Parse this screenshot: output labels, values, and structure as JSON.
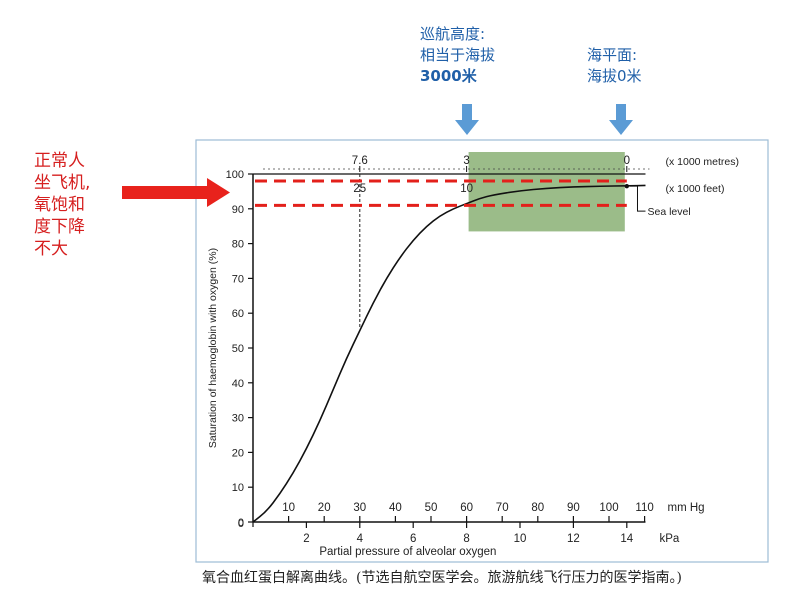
{
  "annotations": {
    "cruise_line1": "巡航高度:",
    "cruise_line2": "相当于海拔",
    "cruise_line3": "3000米",
    "sea_line1": "海平面:",
    "sea_line2": "海拔0米",
    "left_line1": "正常人",
    "left_line2": "坐飞机,",
    "left_line3": "氧饱和",
    "left_line4": "度下降",
    "left_line5": "不大"
  },
  "caption": "氧合血红蛋白解离曲线。(节选自航空医学会。旅游航线飞行压力的医学指南。)",
  "colors": {
    "annotation_blue": "#1f5fa8",
    "arrow_blue": "#5b9bd5",
    "arrow_red": "#e8221c",
    "dashed_red": "#e3201b",
    "highlight_green": "#7fa968",
    "frame": "#9dbcd6"
  },
  "chart_data": {
    "type": "line",
    "title": "",
    "ylabel": "Saturation of haemoglobin with oxygen (%)",
    "xlabel": "Partial pressure of alveolar oxygen",
    "ylim": [
      0,
      100
    ],
    "xlim_kpa": [
      0,
      14.7
    ],
    "y_ticks": [
      "0",
      "10",
      "20",
      "30",
      "40",
      "50",
      "60",
      "70",
      "80",
      "90",
      "100"
    ],
    "kpa_ticks": [
      "2",
      "4",
      "6",
      "8",
      "10",
      "12",
      "14"
    ],
    "kpa_label": "kPa",
    "mmhg_ticks": [
      "10",
      "20",
      "30",
      "40",
      "50",
      "60",
      "70",
      "80",
      "90",
      "100",
      "110"
    ],
    "mmhg_label": "mm Hg",
    "top_metres": {
      "ticks": [
        "7.6",
        "3",
        "0"
      ],
      "kpa": [
        4,
        8,
        14
      ],
      "label": "(x 1000 metres)"
    },
    "top_feet": {
      "ticks": [
        "25",
        "10"
      ],
      "kpa": [
        4,
        8
      ],
      "label": "(x 1000 feet)"
    },
    "sea_level_label": "Sea level",
    "sea_level_point": {
      "kpa": 14,
      "y": 96.5
    },
    "marker_line_kpa": 4,
    "marker_line_top_y": 56,
    "series": [
      {
        "name": "",
        "x_kpa": [
          0,
          0.5,
          1,
          1.5,
          2,
          2.5,
          3,
          3.5,
          4,
          4.5,
          5,
          5.5,
          6,
          6.5,
          7,
          7.5,
          8,
          8.5,
          9,
          10,
          11,
          12,
          13,
          14,
          14.7
        ],
        "y": [
          0,
          3,
          8,
          14,
          21,
          29,
          38,
          47,
          55,
          63,
          70,
          76,
          81,
          85,
          88,
          90,
          91.5,
          93,
          94,
          95.2,
          95.9,
          96.3,
          96.5,
          96.6,
          96.7
        ]
      }
    ],
    "red_dashed_levels": [
      98,
      91
    ],
    "highlight_region": {
      "kpa": [
        8,
        14
      ],
      "y": [
        83.5,
        100
      ]
    },
    "grid": false
  }
}
